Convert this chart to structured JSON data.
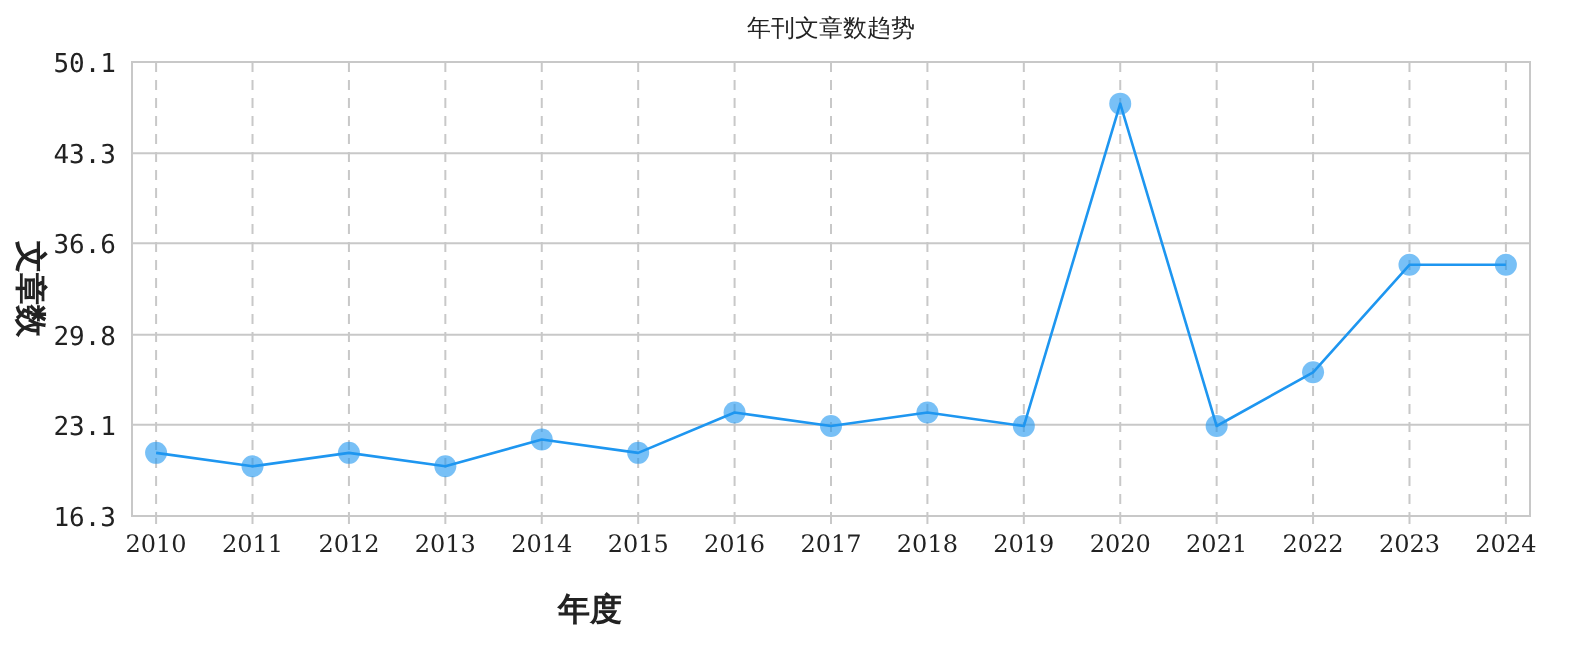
{
  "chart_data": {
    "type": "line",
    "title": "年刊文章数趋势",
    "xlabel": "年度",
    "ylabel": "文章数",
    "categories": [
      "2010",
      "2011",
      "2012",
      "2013",
      "2014",
      "2015",
      "2016",
      "2017",
      "2018",
      "2019",
      "2020",
      "2021",
      "2022",
      "2023",
      "2024"
    ],
    "series": [
      {
        "color": "#1e96f0",
        "values": [
          21,
          20,
          21,
          20,
          22,
          21,
          24,
          23,
          24,
          23,
          47,
          23,
          27,
          35,
          35
        ]
      }
    ],
    "ylim": [
      16.3,
      50.1
    ],
    "yticks": [
      16.3,
      23.1,
      29.8,
      36.6,
      43.3,
      50.1
    ],
    "grid": true,
    "marker": "circle",
    "line_style": "solid"
  }
}
